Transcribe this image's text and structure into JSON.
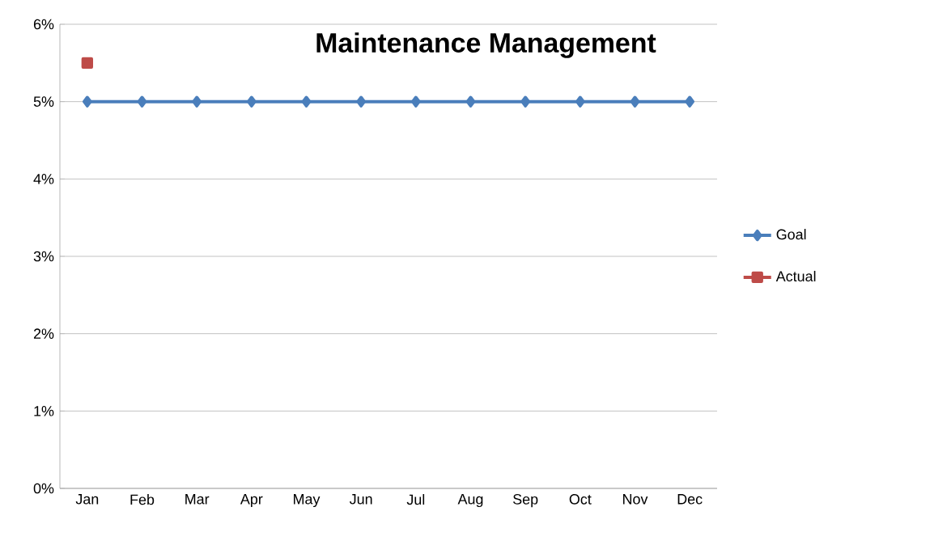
{
  "chart_data": {
    "type": "line",
    "title": "Maintenance Management",
    "categories": [
      "Jan",
      "Feb",
      "Mar",
      "Apr",
      "May",
      "Jun",
      "Jul",
      "Aug",
      "Sep",
      "Oct",
      "Nov",
      "Dec"
    ],
    "series": [
      {
        "name": "Goal",
        "color": "#4a7ebb",
        "marker": "diamond",
        "values": [
          5,
          5,
          5,
          5,
          5,
          5,
          5,
          5,
          5,
          5,
          5,
          5
        ]
      },
      {
        "name": "Actual",
        "color": "#be4b48",
        "marker": "square",
        "values": [
          5.5,
          null,
          null,
          null,
          null,
          null,
          null,
          null,
          null,
          null,
          null,
          null
        ]
      }
    ],
    "ylim": [
      0,
      6
    ],
    "yticks": [
      {
        "value": 0,
        "label": "0%"
      },
      {
        "value": 1,
        "label": "1%"
      },
      {
        "value": 2,
        "label": "2%"
      },
      {
        "value": 3,
        "label": "3%"
      },
      {
        "value": 4,
        "label": "4%"
      },
      {
        "value": 5,
        "label": "5%"
      },
      {
        "value": 6,
        "label": "6%"
      }
    ],
    "grid": "y",
    "legend": "right",
    "line_style": "solid"
  }
}
